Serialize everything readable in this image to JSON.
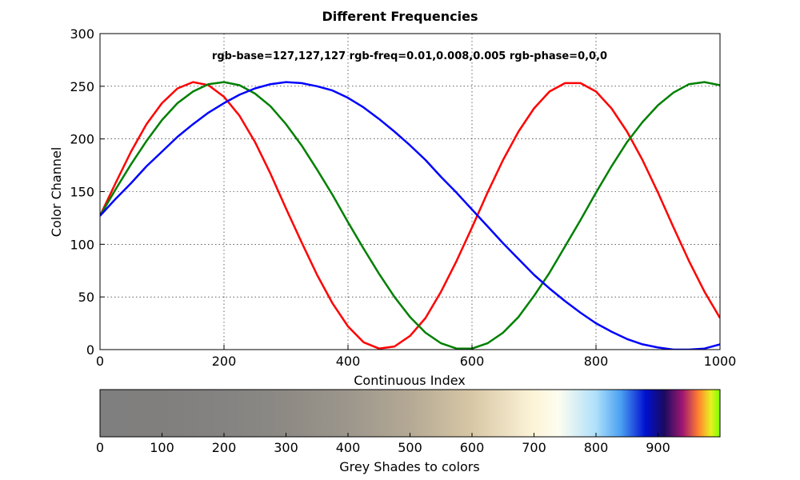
{
  "chart_data": [
    {
      "type": "line",
      "title": "Different Frequencies",
      "annotation": "rgb-base=127,127,127 rgb-freq=0.01,0.008,0.005 rgb-phase=0,0,0",
      "xlabel": "Continuous Index",
      "ylabel": "Color Channel",
      "xlim": [
        0,
        1000
      ],
      "ylim": [
        0,
        300
      ],
      "xticks": [
        "0",
        "200",
        "400",
        "600",
        "800",
        "1000"
      ],
      "yticks": [
        "0",
        "50",
        "100",
        "150",
        "200",
        "250",
        "300"
      ],
      "grid": true,
      "series_colors": [
        "#ff0000",
        "#008000",
        "#0000ff"
      ],
      "series": [
        {
          "x": [
            0,
            25,
            50,
            75,
            100,
            125,
            150,
            175,
            200,
            225,
            250,
            275,
            300,
            325,
            350,
            375,
            400,
            425,
            450,
            475,
            500,
            525,
            550,
            575,
            600,
            625,
            650,
            675,
            700,
            725,
            750,
            775,
            800,
            825,
            850,
            875,
            900,
            925,
            950,
            975,
            1000
          ],
          "values": [
            127,
            158,
            188,
            214,
            234,
            248,
            254,
            251,
            240,
            222,
            197,
            167,
            134,
            102,
            71,
            44,
            22,
            7,
            1,
            3,
            13,
            30,
            55,
            84,
            116,
            149,
            180,
            207,
            229,
            245,
            253,
            253,
            245,
            229,
            207,
            180,
            149,
            116,
            84,
            55,
            30
          ]
        },
        {
          "x": [
            0,
            25,
            50,
            75,
            100,
            125,
            150,
            175,
            200,
            225,
            250,
            275,
            300,
            325,
            350,
            375,
            400,
            425,
            450,
            475,
            500,
            525,
            550,
            575,
            600,
            625,
            650,
            675,
            700,
            725,
            750,
            775,
            800,
            825,
            850,
            875,
            900,
            925,
            950,
            975,
            1000
          ],
          "values": [
            127,
            152,
            176,
            198,
            218,
            234,
            245,
            252,
            254,
            251,
            243,
            231,
            214,
            194,
            171,
            147,
            121,
            96,
            72,
            50,
            31,
            16,
            6,
            1,
            1,
            6,
            16,
            31,
            51,
            73,
            98,
            123,
            149,
            174,
            197,
            216,
            232,
            244,
            252,
            254,
            251
          ]
        },
        {
          "x": [
            0,
            25,
            50,
            75,
            100,
            125,
            150,
            175,
            200,
            225,
            250,
            275,
            300,
            325,
            350,
            375,
            400,
            425,
            450,
            475,
            500,
            525,
            550,
            575,
            600,
            625,
            650,
            675,
            700,
            725,
            750,
            775,
            800,
            825,
            850,
            875,
            900,
            925,
            950,
            975,
            1000
          ],
          "values": [
            127,
            143,
            158,
            174,
            188,
            202,
            214,
            225,
            234,
            242,
            248,
            252,
            254,
            253,
            250,
            246,
            239,
            230,
            219,
            207,
            194,
            180,
            164,
            149,
            133,
            117,
            101,
            86,
            71,
            58,
            46,
            35,
            25,
            17,
            10,
            5,
            2,
            0,
            0,
            1,
            5
          ]
        }
      ]
    },
    {
      "type": "heatmap",
      "xlabel": "Grey Shades to colors",
      "xlim": [
        0,
        1000
      ],
      "xticks": [
        "0",
        "100",
        "200",
        "300",
        "400",
        "500",
        "600",
        "700",
        "800",
        "900"
      ],
      "color_stops": [
        {
          "at": 0,
          "color": "#7f7f7f"
        },
        {
          "at": 100,
          "color": "#817f7e"
        },
        {
          "at": 200,
          "color": "#848382"
        },
        {
          "at": 300,
          "color": "#8d8a84"
        },
        {
          "at": 400,
          "color": "#9c968c"
        },
        {
          "at": 500,
          "color": "#b4a994"
        },
        {
          "at": 600,
          "color": "#d8c7a6"
        },
        {
          "at": 700,
          "color": "#fdf4d8"
        },
        {
          "at": 740,
          "color": "#fdfdf0"
        },
        {
          "at": 800,
          "color": "#aee0fa"
        },
        {
          "at": 840,
          "color": "#4aa0f2"
        },
        {
          "at": 880,
          "color": "#0010d0"
        },
        {
          "at": 910,
          "color": "#1a0a60"
        },
        {
          "at": 940,
          "color": "#a01870"
        },
        {
          "at": 965,
          "color": "#ff8030"
        },
        {
          "at": 985,
          "color": "#e8f020"
        },
        {
          "at": 1000,
          "color": "#80ff00"
        }
      ]
    }
  ]
}
